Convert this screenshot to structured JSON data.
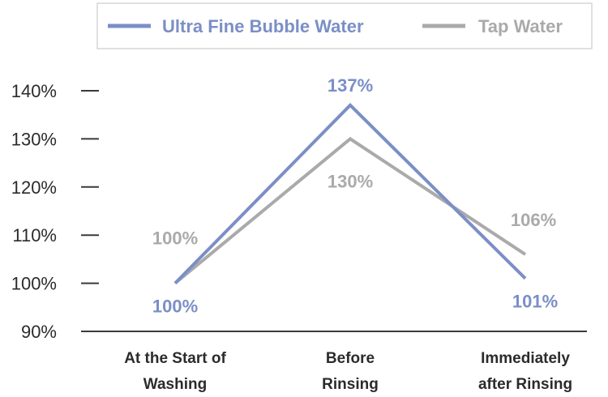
{
  "chart_data": {
    "type": "line",
    "categories": [
      "At the Start of Washing",
      "Before Rinsing",
      "Immediately after Rinsing"
    ],
    "category_lines": [
      [
        "At the Start of",
        "Washing"
      ],
      [
        "Before",
        "Rinsing"
      ],
      [
        "Immediately",
        "after Rinsing"
      ]
    ],
    "series": [
      {
        "name": "Ultra Fine Bubble Water",
        "values": [
          100,
          137,
          101
        ],
        "labels": [
          "100%",
          "137%",
          "101%"
        ],
        "color": "#7b8fc6"
      },
      {
        "name": "Tap Water",
        "values": [
          100,
          130,
          106
        ],
        "labels": [
          "100%",
          "130%",
          "106%"
        ],
        "color": "#aaaaaa"
      }
    ],
    "yticks": [
      90,
      100,
      110,
      120,
      130,
      140
    ],
    "ytick_labels": [
      "90%",
      "100%",
      "110%",
      "120%",
      "130%",
      "140%"
    ],
    "ylim": [
      90,
      140
    ],
    "title": "",
    "xlabel": "",
    "ylabel": "",
    "grid": false,
    "legend_position": "top-right"
  }
}
